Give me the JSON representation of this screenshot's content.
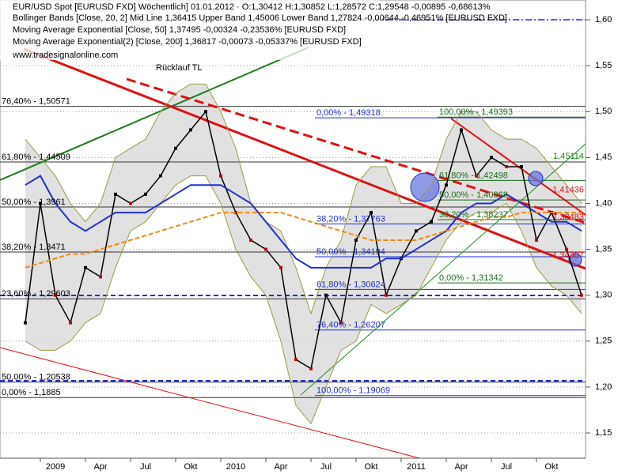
{
  "chart_data": {
    "type": "line",
    "header": [
      "EUR/USD Spot [EURUSD FXD]  Wöchentlich] 01.01.2012 · O:1,30412 H:1,30852 L:1,28572 C:1,29548 -0,00895 -0,68613%",
      "Bollinger Bands [Close, 20, 2] Mid Line 1,36415 Upper Band 1,45006 Lower Band 1,27824 -0,00644 -0,46951% [EURUSD FXD]",
      "Moving Average Exponential [Close, 50] 1,37495 -0,00324 -0,23536% [EURUSD FXD]",
      "Moving Average Exponential(2) [Close, 200] 1,36817 -0,00073 -0,05337% [EURUSD FXD]"
    ],
    "source": "www.tradesignalonline.com",
    "annotation": "Rücklauf TL",
    "categories": [
      null,
      null,
      "2009",
      null,
      null,
      "Apr",
      null,
      null,
      "Jul",
      null,
      null,
      "Okt",
      null,
      null,
      "2010",
      null,
      null,
      "Apr",
      null,
      null,
      "Jul",
      null,
      null,
      "Okt",
      null,
      null,
      "2011",
      null,
      null,
      "Apr",
      null,
      null,
      "Jul",
      null,
      null,
      "Okt",
      null,
      null
    ],
    "series": [
      {
        "name": "EUR/USD Spot",
        "color": "#000000",
        "values": [
          1.27,
          1.4,
          1.3,
          1.27,
          1.33,
          1.32,
          1.41,
          1.4,
          1.41,
          1.43,
          1.46,
          1.48,
          1.5,
          1.43,
          1.39,
          1.36,
          1.35,
          1.33,
          1.23,
          1.22,
          1.3,
          1.27,
          1.36,
          1.39,
          1.3,
          1.34,
          1.37,
          1.38,
          1.42,
          1.48,
          1.43,
          1.45,
          1.44,
          1.44,
          1.36,
          1.39,
          1.35,
          1.3
        ]
      },
      {
        "name": "Upper Band",
        "color": "#9a9a40",
        "values": [
          1.47,
          1.45,
          1.43,
          1.4,
          1.38,
          1.4,
          1.45,
          1.46,
          1.47,
          1.5,
          1.52,
          1.53,
          1.53,
          1.5,
          1.46,
          1.4,
          1.38,
          1.37,
          1.33,
          1.28,
          1.33,
          1.36,
          1.42,
          1.44,
          1.44,
          1.4,
          1.4,
          1.42,
          1.47,
          1.5,
          1.5,
          1.48,
          1.47,
          1.47,
          1.46,
          1.44,
          1.42,
          1.4
        ]
      },
      {
        "name": "Lower Band",
        "color": "#9a9a40",
        "values": [
          1.25,
          1.24,
          1.24,
          1.25,
          1.27,
          1.28,
          1.33,
          1.37,
          1.38,
          1.4,
          1.42,
          1.43,
          1.43,
          1.4,
          1.35,
          1.32,
          1.3,
          1.25,
          1.18,
          1.16,
          1.2,
          1.24,
          1.25,
          1.29,
          1.28,
          1.29,
          1.3,
          1.33,
          1.36,
          1.38,
          1.39,
          1.39,
          1.4,
          1.37,
          1.33,
          1.31,
          1.3,
          1.28
        ]
      },
      {
        "name": "MA 50",
        "color": "#1f2fd0",
        "values": [
          1.42,
          1.43,
          1.4,
          1.38,
          1.37,
          1.38,
          1.39,
          1.39,
          1.39,
          1.4,
          1.41,
          1.42,
          1.42,
          1.42,
          1.41,
          1.4,
          1.38,
          1.36,
          1.34,
          1.33,
          1.33,
          1.33,
          1.33,
          1.33,
          1.34,
          1.34,
          1.35,
          1.36,
          1.37,
          1.39,
          1.4,
          1.4,
          1.41,
          1.4,
          1.39,
          1.38,
          1.38,
          1.37
        ]
      },
      {
        "name": "MA 200",
        "color": "#f08a10",
        "values": [
          1.33,
          1.335,
          1.34,
          1.345,
          1.345,
          1.35,
          1.355,
          1.36,
          1.365,
          1.37,
          1.375,
          1.38,
          1.385,
          1.39,
          1.39,
          1.39,
          1.39,
          1.39,
          1.385,
          1.38,
          1.375,
          1.37,
          1.365,
          1.36,
          1.36,
          1.36,
          1.36,
          1.365,
          1.37,
          1.375,
          1.38,
          1.385,
          1.385,
          1.39,
          1.39,
          1.39,
          1.39,
          1.39
        ]
      }
    ],
    "fib_left": [
      {
        "value": 1.50571,
        "label": "76,40% - 1,50571"
      },
      {
        "value": 1.44509,
        "label": "61,80% - 1,44509"
      },
      {
        "value": 1.3961,
        "label": "50,00% - 1,3961"
      },
      {
        "value": 1.3471,
        "label": "38,20% - 1,3471"
      },
      {
        "value": 1.29603,
        "label": "23,60% - 1,29603"
      },
      {
        "value": 1.20538,
        "label": "50,00% - 1,20538"
      },
      {
        "value": 1.1885,
        "label": "0,00% - 1,1885"
      }
    ],
    "fib_mid": [
      {
        "value": 1.49318,
        "label": "0,00% - 1,49318"
      },
      {
        "value": 1.37763,
        "label": "38,20% - 1,37763"
      },
      {
        "value": 1.34194,
        "label": "50,00% - 1,34194"
      },
      {
        "value": 1.30624,
        "label": "61,80% - 1,30624"
      },
      {
        "value": 1.26207,
        "label": "76,40% - 1,26207"
      },
      {
        "value": 1.19069,
        "label": "100,00% - 1,19069"
      }
    ],
    "fib_right": [
      {
        "value": 1.49393,
        "label": "100,00% - 1,49393"
      },
      {
        "value": 1.42498,
        "label": "61,80% - 1,42498"
      },
      {
        "value": 1.40368,
        "label": "50,00% - 1,40368"
      },
      {
        "value": 1.38237,
        "label": "38,20% - 1,38237"
      },
      {
        "value": 1.31342,
        "label": "0,00% - 1,31342"
      }
    ],
    "right_labels": [
      {
        "value": 1.45114,
        "label": "1,45114",
        "color": "#1a8a1a"
      },
      {
        "value": 1.41436,
        "label": "1,41436",
        "color": "#e01010"
      },
      {
        "value": 1.38483,
        "label": "1,38483",
        "color": "#e01010"
      },
      {
        "value": 1.34307,
        "label": "1,34307",
        "color": "#e01010"
      }
    ],
    "ylim": [
      1.1225,
      1.6215
    ],
    "yticks": [
      {
        "value": 1.15,
        "label": "1,15"
      },
      {
        "value": 1.2,
        "label": "1,20"
      },
      {
        "value": 1.25,
        "label": "1,25"
      },
      {
        "value": 1.3,
        "label": "1,30"
      },
      {
        "value": 1.35,
        "label": "1,35"
      },
      {
        "value": 1.4,
        "label": "1,40"
      },
      {
        "value": 1.45,
        "label": "1,45"
      },
      {
        "value": 1.5,
        "label": "1,50"
      },
      {
        "value": 1.55,
        "label": "1,55"
      },
      {
        "value": 1.6,
        "label": "1,60"
      }
    ],
    "grid": true
  }
}
